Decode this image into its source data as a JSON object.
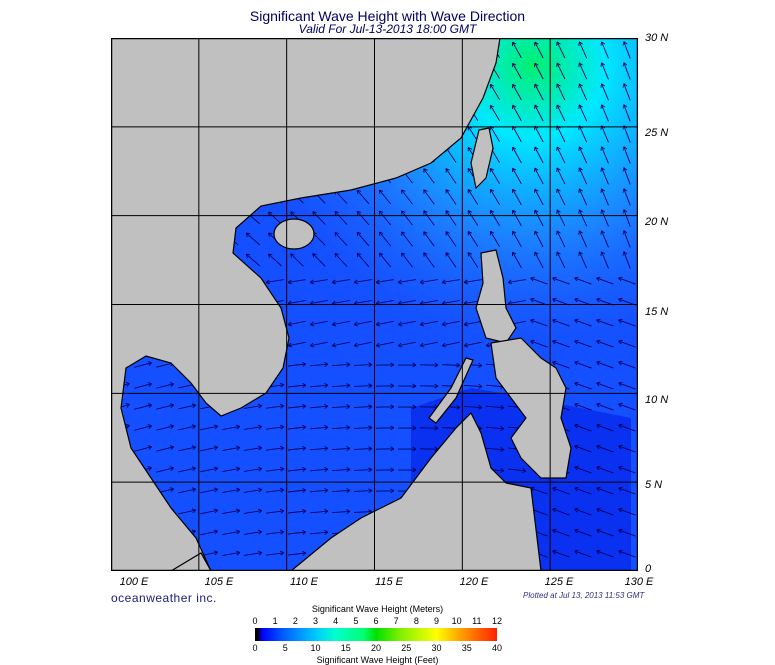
{
  "header": {
    "title": "Significant Wave Height with Wave Direction",
    "subtitle": "Valid For Jul-13-2013 18:00 GMT"
  },
  "map": {
    "lat_labels": [
      "30 N",
      "25 N",
      "20 N",
      "15 N",
      "10 N",
      "5 N",
      "0"
    ],
    "lon_labels": [
      "100 E",
      "105 E",
      "110 E",
      "115 E",
      "120 E",
      "125 E",
      "130 E"
    ],
    "lon_range": [
      100,
      130
    ],
    "lat_range": [
      0,
      30
    ],
    "colors": {
      "land": "#c0c0c0",
      "ocean_low": "#0a3cf0",
      "ocean_mid": "#1e78ff",
      "ocean_high": "#00e0ff",
      "ocean_peak": "#00e878",
      "arrow": "#000060"
    }
  },
  "footer": {
    "brand": "oceanweather inc.",
    "plotted": "Plotted at Jul 13, 2013 11:53 GMT"
  },
  "colorbar": {
    "title_meters": "Significant Wave Height (Meters)",
    "title_feet": "Significant Wave Height (Feet)",
    "meters": [
      "0",
      "1",
      "2",
      "3",
      "4",
      "5",
      "6",
      "7",
      "8",
      "9",
      "10",
      "11",
      "12"
    ],
    "feet": [
      "0",
      "5",
      "10",
      "15",
      "20",
      "25",
      "30",
      "35",
      "40"
    ]
  }
}
